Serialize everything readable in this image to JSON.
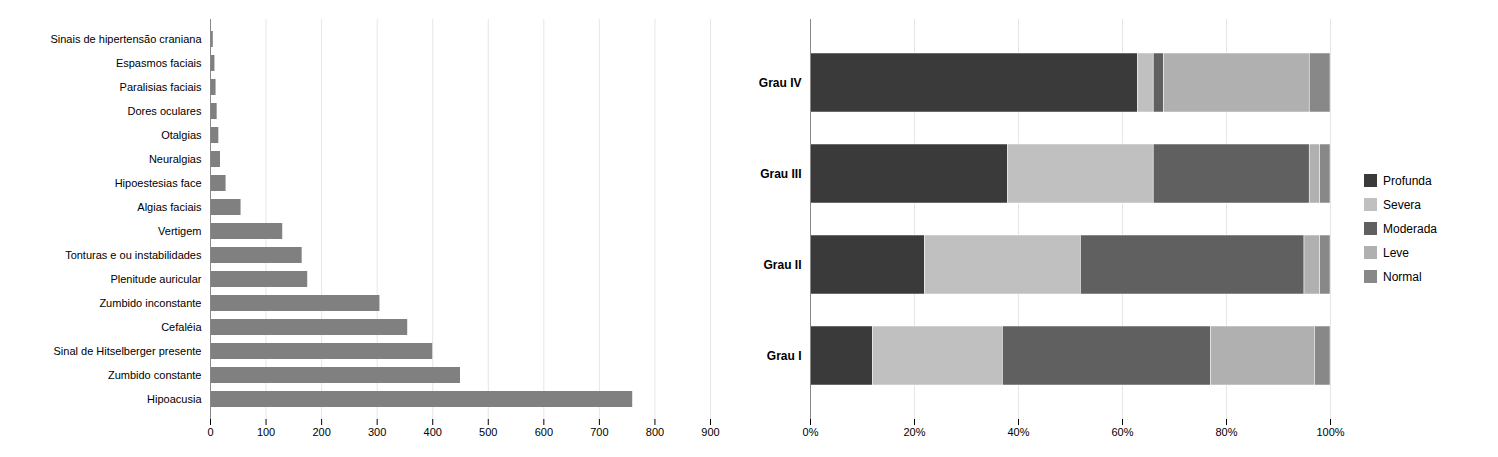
{
  "chart_data": [
    {
      "type": "bar",
      "orientation": "horizontal",
      "categories": [
        "Hipoacusia",
        "Zumbido constante",
        "Sinal de Hitselberger presente",
        "Cefaléia",
        "Zumbido inconstante",
        "Plenitude auricular",
        "Tonturas e ou instabilidades",
        "Vertigem",
        "Algias faciais",
        "Hipoestesias face",
        "Neuralgias",
        "Otalgias",
        "Dores oculares",
        "Paralisias faciais",
        "Espasmos faciais",
        "Sinais de hipertensão craniana"
      ],
      "values": [
        760,
        450,
        400,
        355,
        305,
        175,
        165,
        130,
        55,
        28,
        18,
        15,
        12,
        10,
        8,
        5
      ],
      "color": "#808080",
      "xlim": [
        0,
        900
      ],
      "xticks": [
        0,
        100,
        200,
        300,
        400,
        500,
        600,
        700,
        800,
        900
      ],
      "grid": true
    },
    {
      "type": "bar",
      "orientation": "horizontal",
      "stacked": true,
      "categories": [
        "Grau I",
        "Grau II",
        "Grau III",
        "Grau IV"
      ],
      "series": [
        {
          "name": "Profunda",
          "color": "#3a3a3a",
          "values": [
            12,
            22,
            38,
            63
          ]
        },
        {
          "name": "Severa",
          "color": "#c0c0c0",
          "values": [
            25,
            30,
            28,
            3
          ]
        },
        {
          "name": "Moderada",
          "color": "#606060",
          "values": [
            40,
            43,
            30,
            2
          ]
        },
        {
          "name": "Leve",
          "color": "#b0b0b0",
          "values": [
            20,
            3,
            2,
            28
          ]
        },
        {
          "name": "Normal",
          "color": "#888888",
          "values": [
            3,
            2,
            2,
            4
          ]
        }
      ],
      "xlim": [
        0,
        100
      ],
      "xticks": [
        {
          "value": 0,
          "label": "0%"
        },
        {
          "value": 20,
          "label": "20%"
        },
        {
          "value": 40,
          "label": "40%"
        },
        {
          "value": 60,
          "label": "60%"
        },
        {
          "value": 80,
          "label": "80%"
        },
        {
          "value": 100,
          "label": "100%"
        }
      ],
      "grid": true,
      "legend": "right"
    }
  ]
}
